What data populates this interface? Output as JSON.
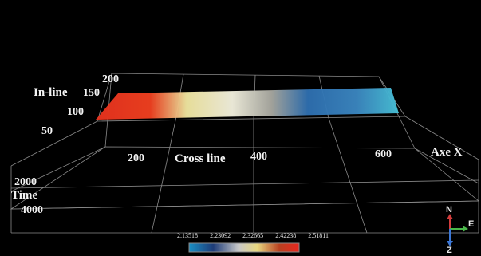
{
  "scene": {
    "background": "#000000",
    "grid_color": "#8a8a8a",
    "surface_colors": [
      "#e8321e",
      "#f0e6a0",
      "#f2f0de",
      "#a8a8a0",
      "#2e6fb0",
      "#48c2d8"
    ]
  },
  "axes": {
    "inline": {
      "label": "In-line",
      "ticks": [
        "200",
        "150",
        "100",
        "50"
      ]
    },
    "crossline": {
      "label": "Cross line",
      "ticks": [
        "200",
        "400",
        "600"
      ]
    },
    "axe_x_label": "Axe X",
    "time": {
      "label": "Time",
      "ticks": [
        "2000",
        "4000"
      ]
    }
  },
  "colorbar": {
    "labels": [
      "2.13518",
      "2.23092",
      "2.32665",
      "2.42238",
      "2.51811"
    ],
    "colors": [
      "#1a8fc4",
      "#1e3c78",
      "#c8c8c8",
      "#e8d880",
      "#b84020",
      "#e82820"
    ]
  },
  "compass": {
    "north": "N",
    "east": "E",
    "z": "Z",
    "colors": {
      "north": "#d23c3c",
      "east": "#4ab84a",
      "z": "#3c78d8"
    }
  }
}
